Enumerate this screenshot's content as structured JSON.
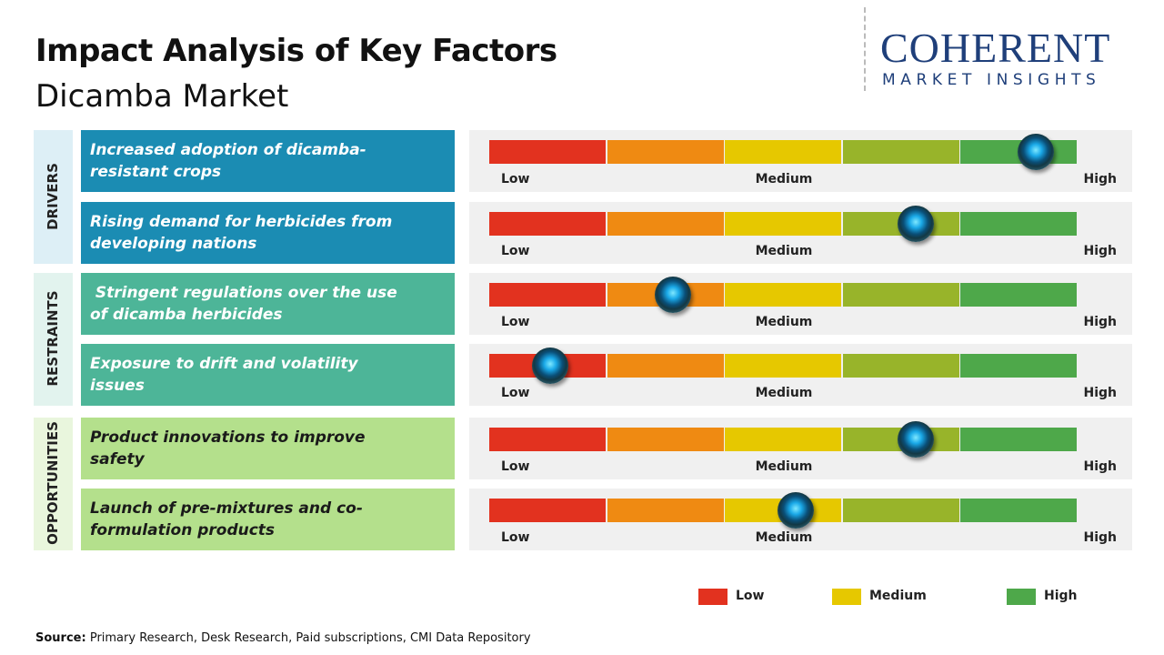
{
  "header": {
    "title": "Impact Analysis of Key Factors",
    "subtitle": "Dicamba Market"
  },
  "logo": {
    "name": "COHERENT",
    "tagline": "MARKET INSIGHTS"
  },
  "scale": {
    "labels": [
      "Low",
      "Medium",
      "High"
    ],
    "segments": [
      "#e2321f",
      "#ef8a12",
      "#e6c800",
      "#98b42a",
      "#4ea84a"
    ]
  },
  "groups": [
    {
      "label": "DRIVERS",
      "panel": "#ddeff6",
      "color": "#1b8cb3",
      "text_color": "#ffffff",
      "factors": [
        {
          "text": "Increased adoption of dicamba-resistant crops",
          "level": 4.64
        },
        {
          "text": "Rising demand for herbicides from developing nations",
          "level": 3.62
        }
      ]
    },
    {
      "label": "RESTRAINTS",
      "panel": "#e2f3ee",
      "color": "#4db598",
      "text_color": "#ffffff",
      "factors": [
        {
          "text": " Stringent regulations over the use of dicamba herbicides",
          "level": 1.56
        },
        {
          "text": "Exposure to drift and volatility issues",
          "level": 0.52
        }
      ]
    },
    {
      "label": "OPPORTUNITIES",
      "panel": "#e9f6dd",
      "color": "#b4e08c",
      "text_color": "#1a1a1a",
      "factors": [
        {
          "text": "Product innovations to improve safety",
          "level": 3.62
        },
        {
          "text": "Launch of pre-mixtures and co-formulation products",
          "level": 2.6
        }
      ]
    }
  ],
  "legend": [
    {
      "label": "Low",
      "color": "#e2321f"
    },
    {
      "label": "Medium",
      "color": "#e6c800"
    },
    {
      "label": "High",
      "color": "#4ea84a"
    }
  ],
  "source": {
    "label": "Source:",
    "text": "Primary Research, Desk Research, Paid subscriptions, CMI Data Repository"
  }
}
